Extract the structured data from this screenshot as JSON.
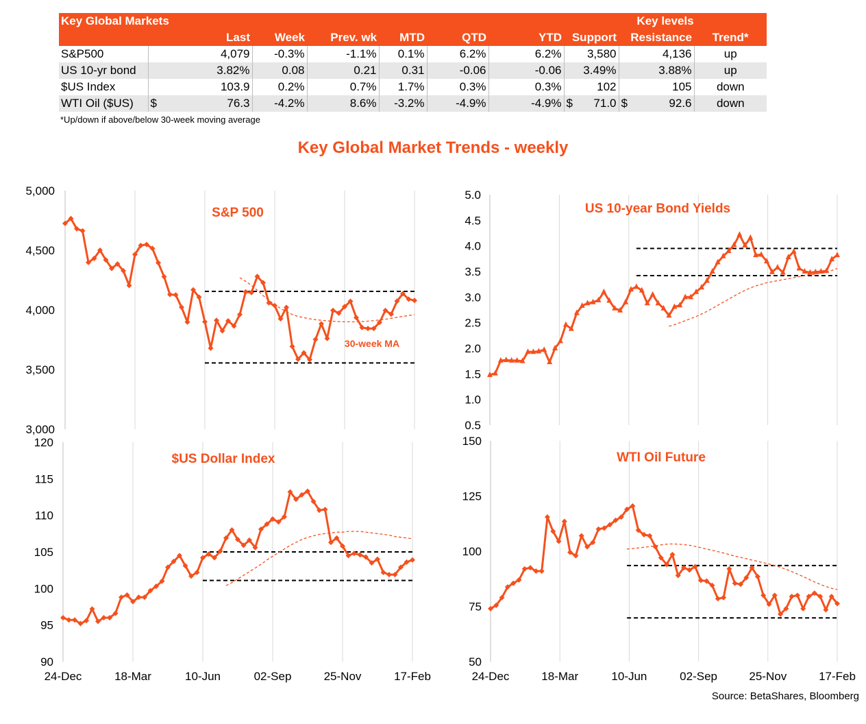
{
  "table": {
    "title": "Key Global Markets",
    "key_levels_label": "Key levels",
    "columns": [
      "Last",
      "Week",
      "Prev. wk",
      "MTD",
      "QTD",
      "YTD",
      "Support",
      "Resistance",
      "Trend*"
    ],
    "rows": [
      {
        "name": "S&P500",
        "last_prefix": "",
        "last": "4,079",
        "week": "-0.3%",
        "prev_wk": "-1.1%",
        "mtd": "0.1%",
        "qtd": "6.2%",
        "ytd": "6.2%",
        "support_prefix": "",
        "support": "3,580",
        "resistance_prefix": "",
        "resistance": "4,136",
        "trend": "up"
      },
      {
        "name": "US 10-yr bond",
        "last_prefix": "",
        "last": "3.82%",
        "week": "0.08",
        "prev_wk": "0.21",
        "mtd": "0.31",
        "qtd": "-0.06",
        "ytd": "-0.06",
        "support_prefix": "",
        "support": "3.49%",
        "resistance_prefix": "",
        "resistance": "3.88%",
        "trend": "up"
      },
      {
        "name": "$US Index",
        "last_prefix": "",
        "last": "103.9",
        "week": "0.2%",
        "prev_wk": "0.7%",
        "mtd": "1.7%",
        "qtd": "0.3%",
        "ytd": "0.3%",
        "support_prefix": "",
        "support": "102",
        "resistance_prefix": "",
        "resistance": "105",
        "trend": "down"
      },
      {
        "name": "WTI Oil ($US)",
        "last_prefix": "$",
        "last": "76.3",
        "week": "-4.2%",
        "prev_wk": "8.6%",
        "mtd": "-3.2%",
        "qtd": "-4.9%",
        "ytd": "-4.9%",
        "support_prefix": "$",
        "support": "71.0",
        "resistance_prefix": "$",
        "resistance": "92.6",
        "trend": "down"
      }
    ],
    "footnote": "*Up/down if above/below 30-week moving average"
  },
  "main_title": "Key Global Market Trends - weekly",
  "source": "Source:  BetaShares, Bloomberg",
  "colors": {
    "accent": "#f4511e",
    "band": "#000000",
    "ma": "#f4511e",
    "grid": "#d9d9d9"
  },
  "chart_data": [
    {
      "id": "spx",
      "type": "line",
      "title": "S&P 500",
      "x_ticks": [
        "24-Dec",
        "18-Mar",
        "10-Jun",
        "02-Sep",
        "25-Nov",
        "17-Feb"
      ],
      "ylim": [
        3000,
        5000
      ],
      "y_ticks": [
        "3,000",
        "3,500",
        "4,000",
        "4,500",
        "5,000"
      ],
      "series": [
        {
          "values": [
            4725,
            4766,
            4680,
            4662,
            4398,
            4432,
            4500,
            4419,
            4348,
            4385,
            4328,
            4205,
            4465,
            4540,
            4548,
            4515,
            4395,
            4278,
            4129,
            4126,
            4022,
            3898,
            4168,
            4107,
            3900,
            3679,
            3912,
            3825,
            3908,
            3865,
            3961,
            4151,
            4145,
            4280,
            4228,
            4059,
            4036,
            3925,
            4021,
            3694,
            3587,
            3640,
            3583,
            3752,
            3883,
            3761,
            3996,
            3973,
            4027,
            4072,
            3935,
            3852,
            3844,
            3844,
            3895,
            3995,
            3964,
            4073,
            4136,
            4090,
            4079
          ]
        }
      ],
      "moving_average": {
        "label": "30-week MA",
        "start_index": 30,
        "values": [
          4270,
          4240,
          4205,
          4165,
          4120,
          4080,
          4045,
          4012,
          3985,
          3962,
          3945,
          3935,
          3925,
          3918,
          3913,
          3908,
          3905,
          3902,
          3900,
          3900,
          3900,
          3903,
          3906,
          3910,
          3916,
          3922,
          3930,
          3938,
          3946,
          3953,
          3960
        ]
      },
      "bands": {
        "support": 3555,
        "resistance": 4155,
        "start_index": 24
      }
    },
    {
      "id": "us10y",
      "type": "line",
      "title": "US  10-year Bond Yields",
      "x_ticks": [
        "24-Dec",
        "18-Mar",
        "10-Jun",
        "02-Sep",
        "25-Nov",
        "17-Feb"
      ],
      "ylim": [
        0.5,
        5.0
      ],
      "y_ticks": [
        "0.5",
        "1.0",
        "1.5",
        "2.0",
        "2.5",
        "3.0",
        "3.5",
        "4.0",
        "4.5",
        "5.0"
      ],
      "series": [
        {
          "values": [
            1.48,
            1.51,
            1.76,
            1.77,
            1.76,
            1.76,
            1.75,
            1.93,
            1.93,
            1.94,
            1.97,
            1.73,
            2.0,
            2.14,
            2.46,
            2.38,
            2.69,
            2.83,
            2.88,
            2.9,
            2.94,
            3.1,
            2.93,
            2.78,
            2.74,
            2.9,
            3.15,
            3.2,
            3.13,
            2.88,
            3.05,
            2.88,
            2.78,
            2.64,
            2.81,
            2.84,
            3.0,
            3.0,
            3.1,
            3.19,
            3.32,
            3.5,
            3.68,
            3.8,
            3.9,
            4.02,
            4.22,
            4.01,
            4.16,
            3.82,
            3.83,
            3.7,
            3.49,
            3.58,
            3.48,
            3.78,
            3.89,
            3.56,
            3.5,
            3.48,
            3.49,
            3.5,
            3.51,
            3.74,
            3.82
          ]
        }
      ],
      "moving_average": {
        "label": "",
        "start_index": 33,
        "values": [
          2.43,
          2.46,
          2.5,
          2.54,
          2.58,
          2.62,
          2.67,
          2.72,
          2.78,
          2.84,
          2.9,
          2.96,
          3.02,
          3.08,
          3.13,
          3.18,
          3.22,
          3.25,
          3.28,
          3.3,
          3.32,
          3.34,
          3.36,
          3.38,
          3.4,
          3.42,
          3.44,
          3.45,
          3.47,
          3.49,
          3.52,
          3.56
        ]
      },
      "bands": {
        "support": 3.42,
        "resistance": 3.95,
        "start_index": 27
      }
    },
    {
      "id": "dxy",
      "type": "line",
      "title": "$US Dollar Index",
      "x_ticks": [
        "24-Dec",
        "18-Mar",
        "10-Jun",
        "02-Sep",
        "25-Nov",
        "17-Feb"
      ],
      "ylim": [
        90,
        120
      ],
      "y_ticks": [
        "90",
        "95",
        "100",
        "105",
        "110",
        "115",
        "120"
      ],
      "series": [
        {
          "values": [
            96.0,
            95.7,
            95.7,
            95.2,
            95.6,
            97.2,
            95.5,
            96.0,
            96.0,
            96.6,
            98.8,
            99.1,
            98.2,
            98.8,
            98.8,
            99.7,
            100.3,
            101.0,
            102.9,
            103.7,
            104.5,
            103.1,
            101.7,
            102.2,
            104.2,
            104.7,
            104.2,
            105.1,
            106.9,
            108.0,
            106.7,
            105.9,
            106.6,
            105.6,
            108.1,
            108.8,
            109.5,
            109.1,
            109.8,
            113.2,
            112.2,
            112.8,
            113.3,
            111.9,
            110.7,
            110.8,
            106.3,
            106.9,
            105.8,
            104.5,
            104.8,
            104.6,
            104.3,
            103.5,
            104.0,
            102.2,
            101.9,
            101.9,
            102.9,
            103.6,
            103.9
          ]
        }
      ],
      "moving_average": {
        "label": "",
        "start_index": 28,
        "values": [
          100.4,
          100.8,
          101.3,
          101.8,
          102.3,
          102.8,
          103.3,
          103.9,
          104.4,
          104.9,
          105.4,
          105.9,
          106.3,
          106.7,
          107.0,
          107.2,
          107.4,
          107.5,
          107.6,
          107.7,
          107.7,
          107.8,
          107.8,
          107.8,
          107.7,
          107.6,
          107.5,
          107.4,
          107.3,
          107.1,
          107.0,
          106.9,
          106.8
        ]
      },
      "bands": {
        "support": 101.1,
        "resistance": 105.0,
        "start_index": 24
      }
    },
    {
      "id": "wti",
      "type": "line",
      "title": "WTI Oil Future",
      "x_ticks": [
        "24-Dec",
        "18-Mar",
        "10-Jun",
        "02-Sep",
        "25-Nov",
        "17-Feb"
      ],
      "ylim": [
        50,
        150
      ],
      "y_ticks": [
        "50",
        "75",
        "100",
        "125",
        "150"
      ],
      "series": [
        {
          "values": [
            74.0,
            75.5,
            79.0,
            83.8,
            85.5,
            87.0,
            92.0,
            92.5,
            91.0,
            91.0,
            115.5,
            109.0,
            104.5,
            113.5,
            99.5,
            98.0,
            107.0,
            102.0,
            104.0,
            110.0,
            110.5,
            112.0,
            114.0,
            115.5,
            119.0,
            120.5,
            109.5,
            107.5,
            107.0,
            102.0,
            97.0,
            94.0,
            98.5,
            89.0,
            92.5,
            91.5,
            93.0,
            86.8,
            86.5,
            84.5,
            78.5,
            79.0,
            92.0,
            85.5,
            85.0,
            88.0,
            92.5,
            88.5,
            80.0,
            76.0,
            80.0,
            71.5,
            74.0,
            79.5,
            80.0,
            74.0,
            79.5,
            81.0,
            79.5,
            73.5,
            79.5,
            76.3
          ]
        }
      ],
      "moving_average": {
        "label": "",
        "start_index": 24,
        "values": [
          101.0,
          101.2,
          101.5,
          101.8,
          102.1,
          102.5,
          102.9,
          103.2,
          103.3,
          103.2,
          103.0,
          102.7,
          102.2,
          101.6,
          101.0,
          100.4,
          99.8,
          99.2,
          98.5,
          97.8,
          97.2,
          96.6,
          96.0,
          95.4,
          94.8,
          94.2,
          93.5,
          92.7,
          91.8,
          90.8,
          89.7,
          88.5,
          87.3,
          86.1,
          85.0,
          84.0,
          83.2,
          82.6
        ]
      },
      "bands": {
        "support": 69.8,
        "resistance": 93.5,
        "start_index": 24
      }
    }
  ]
}
